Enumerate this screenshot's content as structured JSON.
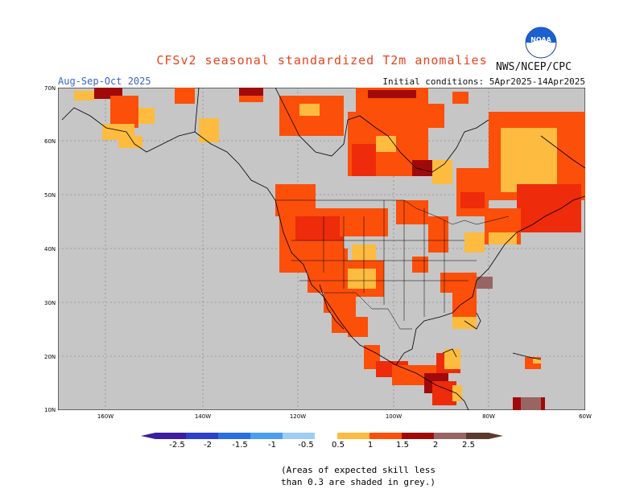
{
  "title": "CFSv2 seasonal standardized T2m anomalies",
  "agency": "NWS/NCEP/CPC",
  "logo_text": "NOAA",
  "season": "Aug-Sep-Oct 2025",
  "initial_conditions": "Initial conditions: 5Apr2025-14Apr2025",
  "lat_labels": [
    "70N",
    "60N",
    "50N",
    "40N",
    "30N",
    "20N",
    "10N"
  ],
  "lon_labels": [
    "160W",
    "140W",
    "120W",
    "100W",
    "80W",
    "60W"
  ],
  "colorbar_labels": [
    "-2.5",
    "-2",
    "-1.5",
    "-1",
    "-0.5",
    "0.5",
    "1",
    "1.5",
    "2",
    "2.5"
  ],
  "colors": {
    "ocean": "#c6c6c6",
    "land": "#c6c6c6",
    "anom_0_5": "#fdbb3f",
    "anom_1": "#fb4f0a",
    "anom_1_5": "#ee2b0b",
    "anom_2": "#a10a0a",
    "anom_2_5": "#986563",
    "neg_0_5": "#9fcdf5",
    "neg_1": "#4b9ef0",
    "neg_1_5": "#2a6fe0",
    "neg_2": "#2d40c9",
    "neg_2_5": "#3b1fa0"
  },
  "note_line1": "(Areas of expected skill less",
  "note_line2": "than 0.3 are shaded in grey.)"
}
